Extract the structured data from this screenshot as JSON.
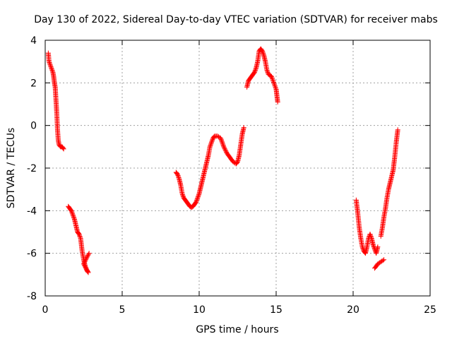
{
  "chart_data": {
    "type": "scatter",
    "title": "Day 130 of 2022, Sidereal Day-to-day VTEC variation (SDTVAR) for receiver mabs",
    "xlabel": "GPS time / hours",
    "ylabel": "SDTVAR / TECUs",
    "xlim": [
      0,
      25
    ],
    "ylim": [
      -8,
      4
    ],
    "x_ticks": [
      0,
      5,
      10,
      15,
      20,
      25
    ],
    "y_ticks": [
      -8,
      -6,
      -4,
      -2,
      0,
      2,
      4
    ],
    "grid": true,
    "legend": "none",
    "marker": "plus",
    "color": "#ff0000",
    "segments": [
      [
        [
          0.2,
          3.4
        ],
        [
          0.25,
          3.0
        ],
        [
          0.3,
          2.9
        ],
        [
          0.35,
          2.8
        ],
        [
          0.4,
          2.7
        ],
        [
          0.45,
          2.6
        ],
        [
          0.5,
          2.5
        ],
        [
          0.55,
          2.3
        ],
        [
          0.6,
          2.0
        ],
        [
          0.65,
          1.8
        ],
        [
          0.7,
          1.2
        ],
        [
          0.75,
          0.6
        ],
        [
          0.8,
          -0.2
        ],
        [
          0.85,
          -0.7
        ],
        [
          0.9,
          -0.9
        ],
        [
          1.0,
          -1.0
        ],
        [
          1.1,
          -1.0
        ],
        [
          1.2,
          -1.1
        ]
      ],
      [
        [
          1.5,
          -3.8
        ],
        [
          1.6,
          -3.9
        ],
        [
          1.7,
          -4.0
        ],
        [
          1.8,
          -4.2
        ],
        [
          1.9,
          -4.4
        ],
        [
          2.0,
          -4.7
        ],
        [
          2.1,
          -5.0
        ],
        [
          2.2,
          -5.1
        ],
        [
          2.3,
          -5.3
        ],
        [
          2.4,
          -5.9
        ],
        [
          2.5,
          -6.3
        ],
        [
          2.6,
          -6.6
        ],
        [
          2.7,
          -6.8
        ],
        [
          2.8,
          -6.9
        ],
        [
          2.5,
          -6.5
        ],
        [
          2.7,
          -6.2
        ],
        [
          2.85,
          -6.0
        ]
      ],
      [
        [
          8.5,
          -2.2
        ],
        [
          8.6,
          -2.3
        ],
        [
          8.7,
          -2.5
        ],
        [
          8.8,
          -2.8
        ],
        [
          8.9,
          -3.2
        ],
        [
          9.0,
          -3.4
        ],
        [
          9.1,
          -3.5
        ],
        [
          9.2,
          -3.6
        ],
        [
          9.3,
          -3.7
        ],
        [
          9.4,
          -3.8
        ],
        [
          9.5,
          -3.85
        ],
        [
          9.6,
          -3.8
        ],
        [
          9.7,
          -3.7
        ],
        [
          9.8,
          -3.6
        ],
        [
          9.9,
          -3.4
        ],
        [
          10.0,
          -3.2
        ],
        [
          10.1,
          -2.9
        ],
        [
          10.2,
          -2.6
        ],
        [
          10.3,
          -2.3
        ],
        [
          10.4,
          -2.0
        ],
        [
          10.5,
          -1.7
        ],
        [
          10.6,
          -1.4
        ],
        [
          10.7,
          -1.0
        ],
        [
          10.8,
          -0.8
        ],
        [
          10.9,
          -0.6
        ],
        [
          11.0,
          -0.5
        ],
        [
          11.2,
          -0.5
        ],
        [
          11.4,
          -0.6
        ],
        [
          11.5,
          -0.8
        ],
        [
          11.6,
          -1.0
        ],
        [
          11.8,
          -1.3
        ],
        [
          12.0,
          -1.5
        ],
        [
          12.2,
          -1.7
        ],
        [
          12.4,
          -1.8
        ],
        [
          12.5,
          -1.7
        ],
        [
          12.6,
          -1.4
        ],
        [
          12.7,
          -0.9
        ],
        [
          12.8,
          -0.4
        ],
        [
          12.9,
          -0.1
        ]
      ],
      [
        [
          13.1,
          1.8
        ],
        [
          13.2,
          2.1
        ],
        [
          13.3,
          2.2
        ],
        [
          13.4,
          2.3
        ],
        [
          13.5,
          2.4
        ],
        [
          13.6,
          2.5
        ],
        [
          13.7,
          2.7
        ],
        [
          13.8,
          3.0
        ],
        [
          13.9,
          3.5
        ],
        [
          14.0,
          3.6
        ],
        [
          14.1,
          3.5
        ],
        [
          14.2,
          3.3
        ],
        [
          14.3,
          3.0
        ],
        [
          14.4,
          2.6
        ],
        [
          14.5,
          2.4
        ],
        [
          14.6,
          2.35
        ],
        [
          14.7,
          2.3
        ],
        [
          15.0,
          1.7
        ],
        [
          15.05,
          1.4
        ],
        [
          15.1,
          1.1
        ]
      ],
      [
        [
          20.2,
          -3.5
        ],
        [
          20.3,
          -4.1
        ],
        [
          20.4,
          -4.8
        ],
        [
          20.5,
          -5.3
        ],
        [
          20.6,
          -5.7
        ],
        [
          20.7,
          -5.9
        ],
        [
          20.8,
          -6.0
        ],
        [
          20.9,
          -5.7
        ],
        [
          21.0,
          -5.3
        ],
        [
          21.1,
          -5.1
        ],
        [
          21.2,
          -5.3
        ],
        [
          21.3,
          -5.6
        ],
        [
          21.4,
          -5.8
        ],
        [
          21.5,
          -6.0
        ],
        [
          21.6,
          -5.7
        ],
        [
          21.4,
          -6.7
        ],
        [
          21.6,
          -6.5
        ],
        [
          21.8,
          -6.4
        ],
        [
          22.0,
          -6.3
        ],
        [
          21.8,
          -5.2
        ],
        [
          21.9,
          -4.8
        ],
        [
          22.0,
          -4.3
        ],
        [
          22.1,
          -3.9
        ],
        [
          22.2,
          -3.4
        ],
        [
          22.3,
          -3.0
        ],
        [
          22.4,
          -2.7
        ],
        [
          22.5,
          -2.4
        ],
        [
          22.6,
          -2.1
        ],
        [
          22.7,
          -1.5
        ],
        [
          22.8,
          -0.8
        ],
        [
          22.9,
          -0.2
        ]
      ]
    ]
  }
}
